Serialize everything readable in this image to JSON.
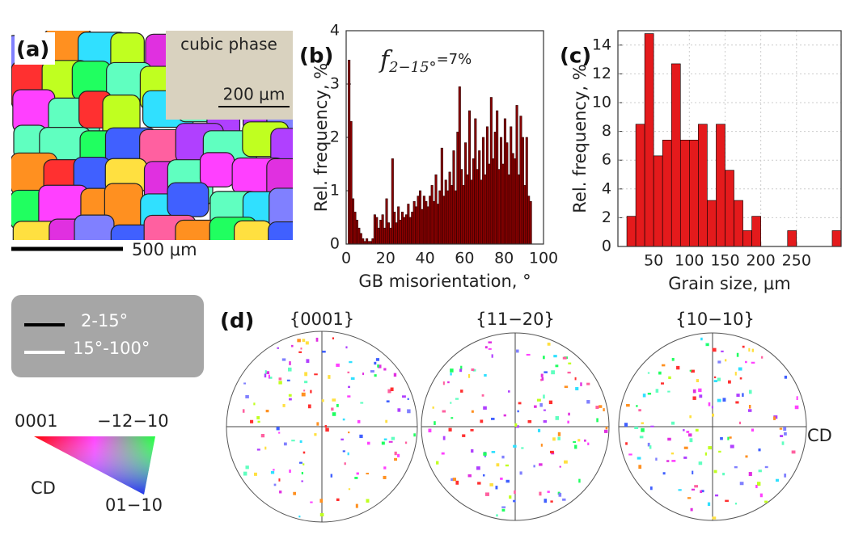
{
  "panels": {
    "a": "(a)",
    "b": "(b)",
    "c": "(c)",
    "d": "(d)"
  },
  "micrograph": {
    "inset_label": "cubic phase",
    "inset_scale": "200 μm",
    "scale": "500 μm"
  },
  "boundary_legend": [
    "2-15°",
    "15°-100°"
  ],
  "ipf_legend": {
    "top_left": "0001",
    "top_right": "−12−10",
    "bottom": "01−10",
    "direction": "CD"
  },
  "pole_figures": {
    "titles": [
      "{0001}",
      "{11−20}",
      "{10−10}"
    ],
    "direction": "CD"
  },
  "chart_data": [
    {
      "type": "histogram",
      "xlabel": "GB misorientation, °",
      "ylabel": "Rel. frequency, %",
      "annotation": {
        "symbol": "f",
        "subscript": "2−15°",
        "text": "=7%"
      },
      "color": "#8b0000",
      "edgecolor": "#2a0000",
      "grid": false,
      "xlim": [
        0,
        100
      ],
      "xticks": [
        0,
        20,
        40,
        60,
        80,
        100
      ],
      "ylim": [
        0,
        4
      ],
      "yticks": [
        0,
        1,
        2,
        3,
        4
      ],
      "bins": [
        1,
        2,
        3,
        4,
        5,
        6,
        7,
        8,
        9,
        10,
        11,
        12,
        13,
        14,
        15,
        16,
        17,
        18,
        19,
        20,
        21,
        22,
        23,
        24,
        25,
        26,
        27,
        28,
        29,
        30,
        31,
        32,
        33,
        34,
        35,
        36,
        37,
        38,
        39,
        40,
        41,
        42,
        43,
        44,
        45,
        46,
        47,
        48,
        49,
        50,
        51,
        52,
        53,
        54,
        55,
        56,
        57,
        58,
        59,
        60,
        61,
        62,
        63,
        64,
        65,
        66,
        67,
        68,
        69,
        70,
        71,
        72,
        73,
        74,
        75,
        76,
        77,
        78,
        79,
        80,
        81,
        82,
        83,
        84,
        85,
        86,
        87,
        88,
        89,
        90,
        91,
        92,
        93,
        94
      ],
      "values": [
        3.45,
        2.3,
        0.85,
        0.6,
        0.45,
        0.3,
        0.2,
        0.1,
        0.05,
        0.1,
        0.05,
        0.05,
        0.1,
        0.55,
        0.5,
        0.3,
        0.45,
        0.55,
        0.3,
        0.85,
        0.4,
        0.3,
        1.6,
        0.6,
        0.4,
        0.7,
        0.45,
        0.6,
        0.5,
        0.55,
        0.75,
        0.5,
        0.6,
        0.8,
        0.7,
        0.9,
        1.0,
        0.65,
        0.9,
        0.8,
        0.7,
        0.9,
        1.1,
        0.8,
        1.3,
        0.75,
        1.0,
        1.8,
        0.9,
        1.2,
        1.0,
        1.35,
        1.1,
        1.75,
        1.0,
        2.1,
        2.95,
        1.4,
        1.1,
        1.9,
        1.3,
        2.5,
        1.2,
        1.6,
        2.35,
        1.4,
        1.75,
        1.2,
        2.0,
        1.3,
        2.2,
        1.5,
        2.75,
        1.6,
        2.1,
        2.5,
        1.4,
        2.0,
        1.5,
        2.35,
        1.9,
        1.3,
        2.2,
        1.7,
        1.6,
        2.6,
        1.3,
        2.4,
        2.0,
        1.1,
        2.0,
        0.9,
        0.8
      ]
    },
    {
      "type": "histogram",
      "xlabel": "Grain size, μm",
      "ylabel": "Rel. frequency, %",
      "color": "#e41a1c",
      "edgecolor": "#000000",
      "grid": true,
      "xlim": [
        0,
        312.5
      ],
      "xticks": [
        50,
        100,
        150,
        200,
        250
      ],
      "ylim": [
        0,
        15
      ],
      "yticks": [
        0,
        2,
        4,
        6,
        8,
        10,
        12,
        14
      ],
      "bins": [
        12.5,
        25,
        37.5,
        50,
        62.5,
        75,
        87.5,
        100,
        112.5,
        125,
        137.5,
        150,
        162.5,
        175,
        187.5,
        200,
        212.5,
        225,
        237.5,
        250,
        262.5,
        275,
        287.5,
        300,
        312.5
      ],
      "values": [
        2.1,
        8.5,
        14.8,
        6.3,
        7.4,
        12.7,
        7.4,
        7.4,
        8.5,
        3.2,
        8.5,
        5.3,
        3.2,
        1.1,
        2.1,
        0,
        0,
        0,
        1.1,
        0,
        0,
        0,
        0,
        1.1
      ]
    }
  ]
}
